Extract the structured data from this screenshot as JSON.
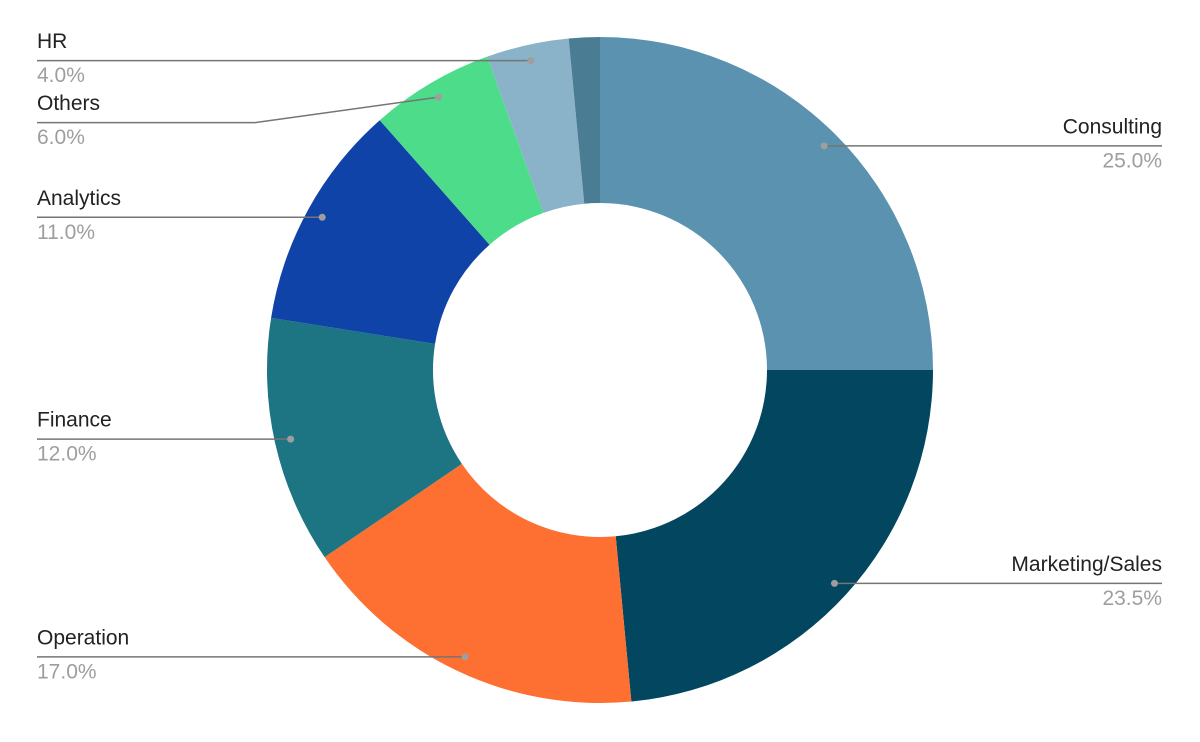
{
  "chart_data": {
    "type": "pie",
    "donut": true,
    "categories": [
      "Consulting",
      "Marketing/Sales",
      "Operation",
      "Finance",
      "Analytics",
      "Others",
      "HR",
      null
    ],
    "values": [
      25.0,
      23.5,
      17.0,
      12.0,
      11.0,
      6.0,
      4.0,
      1.5
    ],
    "value_labels": [
      "25.0%",
      "23.5%",
      "17.0%",
      "12.0%",
      "11.0%",
      "6.0%",
      "4.0%",
      null
    ],
    "colors": [
      "#5b92b0",
      "#02465f",
      "#fe6f32",
      "#1d7482",
      "#0f43a8",
      "#4ddd8a",
      "#8ab2c8",
      "#4a7d93"
    ]
  }
}
